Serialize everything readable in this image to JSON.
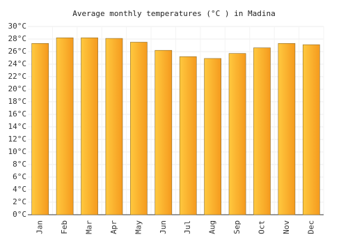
{
  "chart_data": {
    "type": "bar",
    "title": "Average monthly temperatures (°C ) in Madina",
    "categories": [
      "Jan",
      "Feb",
      "Mar",
      "Apr",
      "May",
      "Jun",
      "Jul",
      "Aug",
      "Sep",
      "Oct",
      "Nov",
      "Dec"
    ],
    "values": [
      27.3,
      28.2,
      28.2,
      28.1,
      27.5,
      26.2,
      25.2,
      24.9,
      25.7,
      26.6,
      27.3,
      27.1
    ],
    "color": "#fbb52a",
    "ylim": [
      0,
      30
    ],
    "yticks": [
      {
        "value": 0,
        "label": "0°C"
      },
      {
        "value": 2,
        "label": "2°C"
      },
      {
        "value": 4,
        "label": "4°C"
      },
      {
        "value": 6,
        "label": "6°C"
      },
      {
        "value": 8,
        "label": "8°C"
      },
      {
        "value": 10,
        "label": "10°C"
      },
      {
        "value": 12,
        "label": "12°C"
      },
      {
        "value": 14,
        "label": "14°C"
      },
      {
        "value": 16,
        "label": "16°C"
      },
      {
        "value": 18,
        "label": "18°C"
      },
      {
        "value": 20,
        "label": "20°C"
      },
      {
        "value": 22,
        "label": "22°C"
      },
      {
        "value": 24,
        "label": "24°C"
      },
      {
        "value": 26,
        "label": "26°C"
      },
      {
        "value": 28,
        "label": "28°C"
      },
      {
        "value": 30,
        "label": "30°C"
      }
    ],
    "grid": true
  }
}
